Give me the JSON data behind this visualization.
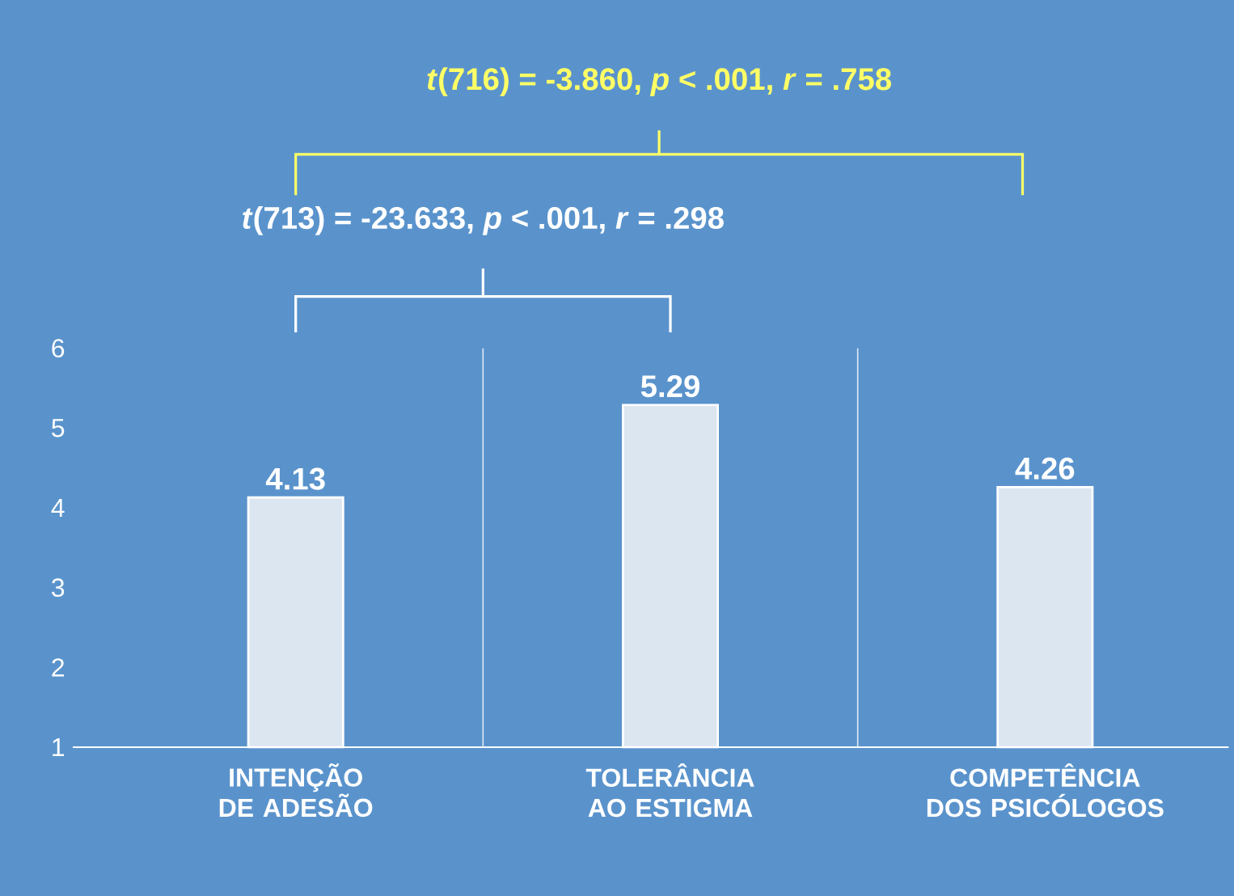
{
  "chart_data": {
    "type": "bar",
    "categories": [
      "INTENÇÃO DE ADESÃO",
      "TOLERÂNCIA AO ESTIGMA",
      "COMPETÊNCIA DOS PSICÓLOGOS"
    ],
    "values": [
      4.13,
      5.29,
      4.26
    ],
    "color": "#dce6f0",
    "ylim": [
      1,
      6
    ],
    "yticks": [
      1,
      2,
      3,
      4,
      5,
      6
    ],
    "data_labels": true,
    "annotations": [
      "*t*(716) = -3.860, *p* < .001, *r* = .758",
      "*t*(713) = -23.633, *p* < .001, *r* = .298"
    ]
  }
}
